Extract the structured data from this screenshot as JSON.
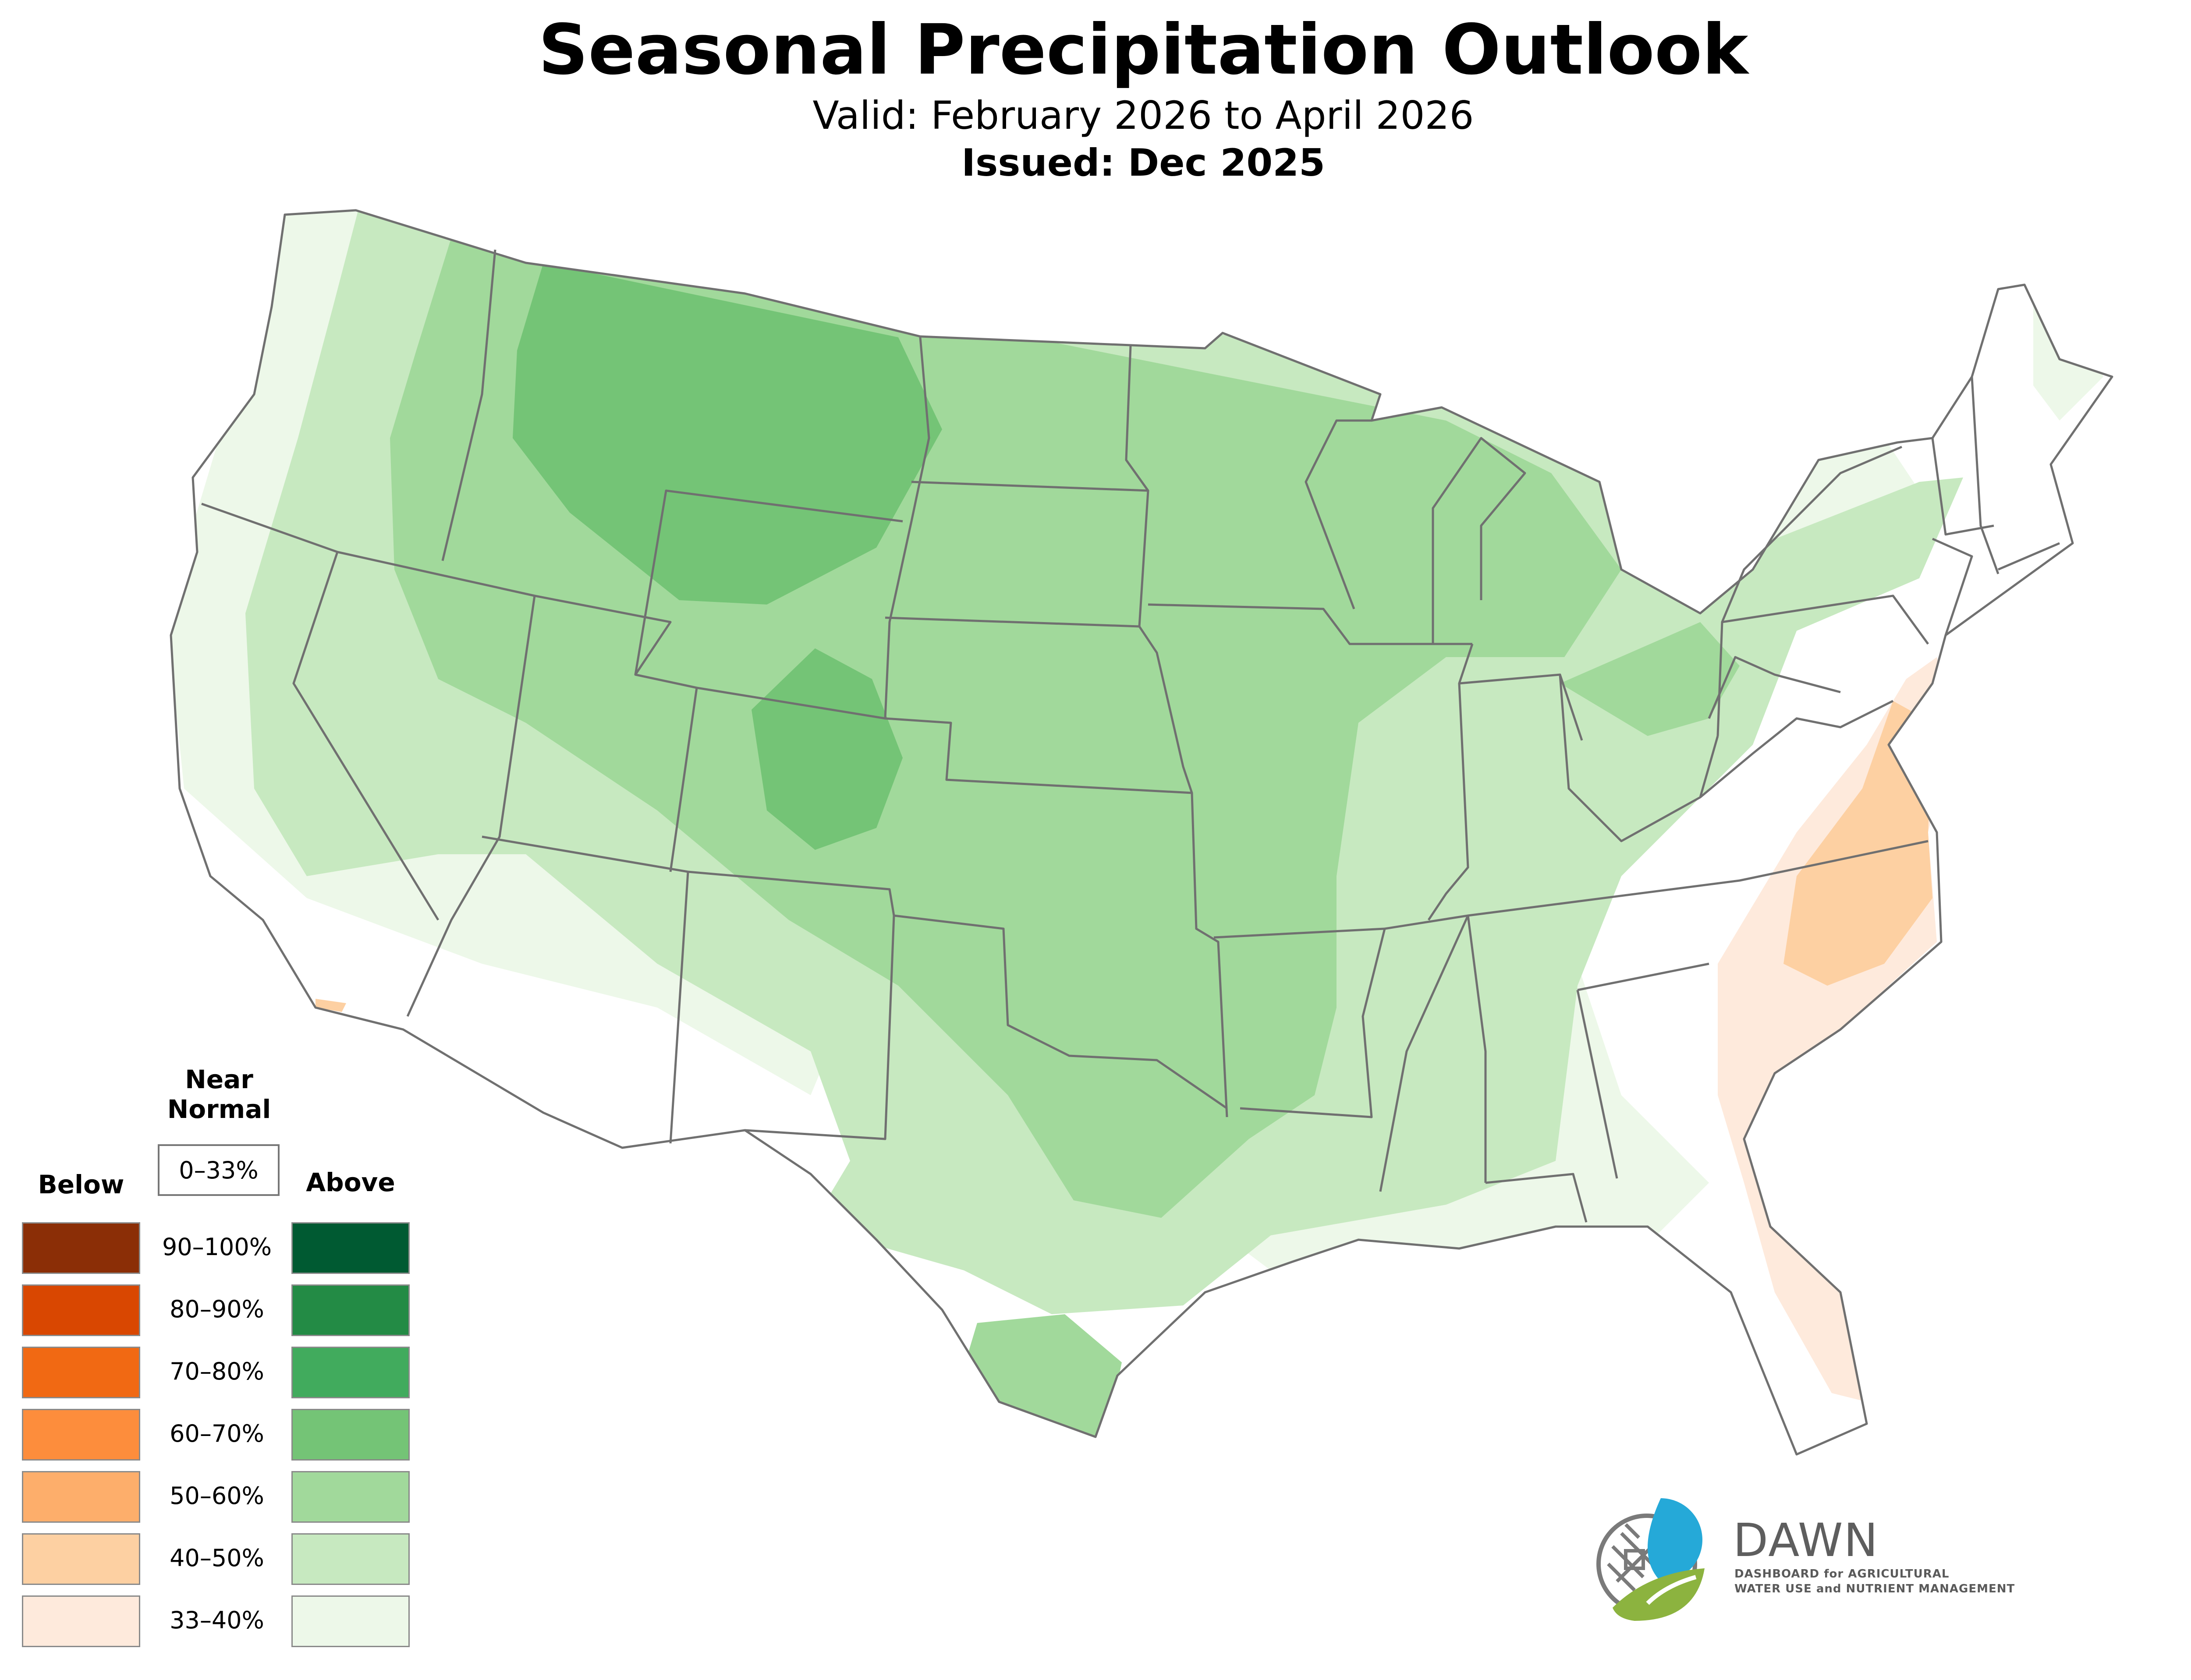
{
  "header": {
    "title": "Seasonal Precipitation Outlook",
    "subtitle": "Valid: February 2026 to April 2026",
    "issued": "Issued: Dec 2025"
  },
  "legend": {
    "near_normal_label": "Near Normal",
    "near_normal_range": "0–33%",
    "below_label": "Below",
    "above_label": "Above",
    "ranges": [
      "90–100%",
      "80–90%",
      "70–80%",
      "60–70%",
      "50–60%",
      "40–50%",
      "33–40%"
    ],
    "below_colors": [
      "#8b2e06",
      "#d94701",
      "#f16913",
      "#fd8d3c",
      "#fdae6b",
      "#fdd0a2",
      "#feeadc"
    ],
    "above_colors": [
      "#005a32",
      "#238b45",
      "#41ab5d",
      "#74c476",
      "#a1d99b",
      "#c7e9c0",
      "#edf8e9"
    ]
  },
  "map": {
    "region": "Contiguous United States",
    "boundary_color": "#707070",
    "zones": [
      {
        "category": "Above",
        "range": "33–40%",
        "area": "West coast, Southwest, Southeast, Great Lakes, Northeast"
      },
      {
        "category": "Above",
        "range": "40–50%",
        "area": "Interior West, Southern Plains, Gulf Coast, Ohio Valley"
      },
      {
        "category": "Above",
        "range": "50–60%",
        "area": "Northern Rockies, Central Plains, Upper Midwest"
      },
      {
        "category": "Above",
        "range": "60–70%",
        "area": "Montana, Wyoming, Colorado"
      },
      {
        "category": "Below",
        "range": "33–40%",
        "area": "Southeast coast and Florida"
      },
      {
        "category": "Below",
        "range": "40–50%",
        "area": "Virginia and North Carolina"
      }
    ]
  },
  "logo": {
    "name": "DAWN",
    "tagline_line1": "DASHBOARD for AGRICULTURAL",
    "tagline_line2": "WATER USE and NUTRIENT MANAGEMENT"
  }
}
